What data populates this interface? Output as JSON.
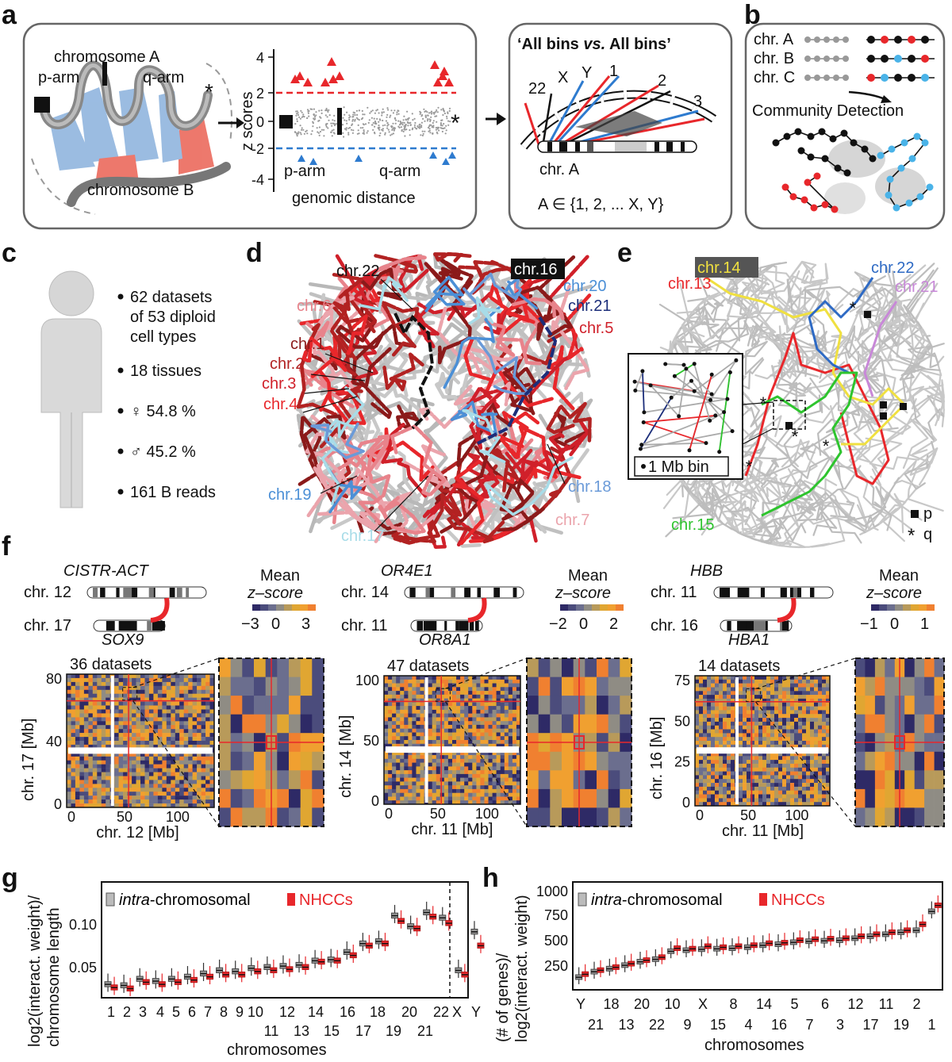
{
  "panels": {
    "letters": [
      "a",
      "b",
      "c",
      "d",
      "e",
      "f",
      "g",
      "h"
    ]
  },
  "panel_a": {
    "chromosome_a": "chromosome A",
    "chromosome_b": "chromosome B",
    "p_arm": "p-arm",
    "q_arm": "q-arm",
    "star": "*",
    "zscore_axis_label": "z scores",
    "zscore_ticks": [
      "4",
      "2",
      "0",
      "-2",
      "-4"
    ],
    "genomic_distance": "genomic distance",
    "plot_p_arm": "p-arm",
    "plot_q_arm": "q-arm",
    "all_bins_title_1": "‘All bins ",
    "all_bins_vs": "vs.",
    "all_bins_title_2": " All bins’",
    "circos_labels": [
      "22",
      "X",
      "Y",
      "1",
      "2",
      "3"
    ],
    "circos_chr": "chr. A",
    "circos_set": "A ∈ {1, 2, ... X, Y}",
    "colors": {
      "red": "#e8272b",
      "blue": "#2e7bcf",
      "grey": "#8c8c8c"
    }
  },
  "panel_b": {
    "chr_a": "chr. A",
    "chr_b": "chr. B",
    "chr_c": "chr. C",
    "community": "Community Detection"
  },
  "panel_c": {
    "items": [
      "62 datasets",
      "of 53 diploid",
      "cell types",
      "18 tissues",
      "♀ 54.8 %",
      "♂ 45.2 %",
      "161 B reads"
    ]
  },
  "panel_d": {
    "labels": [
      "chr.22",
      "chr.16",
      "chr.20",
      "chr.21",
      "chr.6",
      "chr.5",
      "chr.1",
      "chr.2",
      "chr.3",
      "chr.4",
      "chr.19",
      "chr.18",
      "chr.7",
      "chr.17"
    ]
  },
  "panel_e": {
    "labels": [
      "chr.14",
      "chr.22",
      "chr.13",
      "chr.21",
      "chr.15"
    ],
    "inset_label": "1 Mb bin",
    "legend_p": "p",
    "legend_q": "q"
  },
  "panel_f": {
    "groups": [
      {
        "gene_top": "CISTR-ACT",
        "chr_top": "chr. 12",
        "gene_bottom": "SOX9",
        "chr_bottom": "chr. 17",
        "scale_title": "Mean",
        "scale_sub": "z–score",
        "scale_ticks": [
          "−3",
          "0",
          "3"
        ],
        "datasets": "36 datasets",
        "ylabel": "chr. 17 [Mb]",
        "xlabel": "chr. 12 [Mb]",
        "yticks": [
          "80",
          "40",
          "0"
        ],
        "xticks": [
          "0",
          "50",
          "100"
        ]
      },
      {
        "gene_top": "OR4E1",
        "chr_top": "chr. 14",
        "gene_bottom": "OR8A1",
        "chr_bottom": "chr. 11",
        "scale_title": "Mean",
        "scale_sub": "z–score",
        "scale_ticks": [
          "−2",
          "0",
          "2"
        ],
        "datasets": "47 datasets",
        "ylabel": "chr. 14 [Mb]",
        "xlabel": "chr. 11 [Mb]",
        "yticks": [
          "100",
          "50",
          "0"
        ],
        "xticks": [
          "0",
          "50",
          "100"
        ]
      },
      {
        "gene_top": "HBB",
        "chr_top": "chr. 11",
        "gene_bottom": "HBA1",
        "chr_bottom": "chr. 16",
        "scale_title": "Mean",
        "scale_sub": "z–score",
        "scale_ticks": [
          "−1",
          "0",
          "1"
        ],
        "datasets": "14 datasets",
        "ylabel": "chr. 16 [Mb]",
        "xlabel": "chr. 11 [Mb]",
        "yticks": [
          "75",
          "50",
          "25",
          "0"
        ],
        "xticks": [
          "0",
          "50",
          "100"
        ]
      }
    ]
  },
  "panel_g": {
    "legend_intra_italic": "intra",
    "legend_intra_rest": "-chromosomal",
    "legend_nhcc": "NHCCs",
    "ylabel_1": "log2(interact. weight)/",
    "ylabel_2": "chromosome length",
    "xlabel": "chromosomes",
    "yticks": [
      "0.10",
      "0.05"
    ],
    "xticks_top": [
      "1",
      "2",
      "3",
      "4",
      "5",
      "6",
      "7",
      "8",
      "9",
      "10",
      "12",
      "14",
      "16",
      "18",
      "20",
      "22",
      "X",
      "Y"
    ],
    "xticks_bottom": [
      "11",
      "13",
      "15",
      "17",
      "19",
      "21"
    ]
  },
  "panel_h": {
    "legend_intra_italic": "intra",
    "legend_intra_rest": "-chromosomal",
    "legend_nhcc": "NHCCs",
    "ylabel_1": "(# of genes)/",
    "ylabel_2": "log2(interact. weight)",
    "xlabel": "chromosomes",
    "yticks": [
      "1000",
      "750",
      "500",
      "250"
    ],
    "xticks_top": [
      "Y",
      "18",
      "20",
      "10",
      "X",
      "8",
      "14",
      "5",
      "6",
      "12",
      "11",
      "2"
    ],
    "xticks_bottom": [
      "21",
      "13",
      "22",
      "9",
      "15",
      "4",
      "16",
      "7",
      "3",
      "17",
      "19",
      "1"
    ]
  },
  "chart_data": [
    {
      "type": "box",
      "panel": "g",
      "categories": [
        "1",
        "2",
        "3",
        "4",
        "5",
        "6",
        "7",
        "8",
        "9",
        "10",
        "11",
        "12",
        "13",
        "14",
        "15",
        "16",
        "17",
        "18",
        "19",
        "20",
        "21",
        "22",
        "X",
        "Y"
      ],
      "series": [
        {
          "name": "intra-chromosomal",
          "color": "#9a9a9a",
          "values": [
            0.031,
            0.03,
            0.036,
            0.034,
            0.036,
            0.038,
            0.041,
            0.044,
            0.043,
            0.046,
            0.047,
            0.048,
            0.049,
            0.053,
            0.054,
            0.061,
            0.069,
            0.071,
            0.095,
            0.085,
            0.098,
            0.093,
            0.044,
            0.08
          ]
        },
        {
          "name": "NHCCs",
          "color": "#e8272b",
          "values": [
            0.028,
            0.027,
            0.033,
            0.031,
            0.033,
            0.035,
            0.038,
            0.04,
            0.04,
            0.043,
            0.044,
            0.045,
            0.047,
            0.052,
            0.053,
            0.058,
            0.067,
            0.069,
            0.09,
            0.083,
            0.094,
            0.088,
            0.04,
            0.067
          ]
        }
      ],
      "ylabel": "log2(interact. weight)/ chromosome length",
      "xlabel": "chromosomes",
      "ylim": [
        0.02,
        0.125
      ]
    },
    {
      "type": "box",
      "panel": "h",
      "categories": [
        "Y",
        "21",
        "18",
        "13",
        "20",
        "22",
        "10",
        "9",
        "X",
        "15",
        "8",
        "4",
        "14",
        "16",
        "5",
        "7",
        "6",
        "3",
        "12",
        "17",
        "11",
        "19",
        "2",
        "1"
      ],
      "series": [
        {
          "name": "intra-chromosomal",
          "color": "#9a9a9a",
          "values": [
            110,
            165,
            195,
            230,
            265,
            290,
            370,
            380,
            390,
            395,
            400,
            410,
            430,
            440,
            460,
            470,
            475,
            480,
            500,
            520,
            540,
            560,
            580,
            770
          ]
        },
        {
          "name": "NHCCs",
          "color": "#e8272b",
          "values": [
            140,
            180,
            210,
            245,
            280,
            310,
            400,
            395,
            420,
            410,
            420,
            430,
            450,
            455,
            480,
            490,
            495,
            500,
            520,
            540,
            560,
            580,
            640,
            830
          ]
        }
      ],
      "ylabel": "(# of genes)/ log2(interact. weight)",
      "xlabel": "chromosomes",
      "ylim": [
        0,
        1050
      ]
    }
  ]
}
